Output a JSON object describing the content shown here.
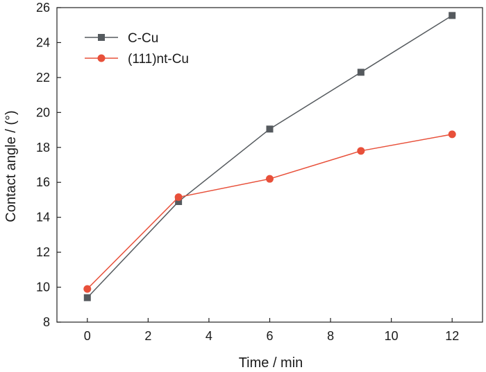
{
  "chart_data": {
    "type": "line",
    "xlabel": "Time / min",
    "ylabel": "Contact angle / (°)",
    "xlim": [
      -1,
      13
    ],
    "ylim": [
      8,
      26
    ],
    "x_ticks": [
      "0",
      "2",
      "4",
      "6",
      "8",
      "10",
      "12"
    ],
    "y_ticks": [
      "8",
      "10",
      "12",
      "14",
      "16",
      "18",
      "20",
      "22",
      "24",
      "26"
    ],
    "grid": false,
    "legend_position": "top-left",
    "series": [
      {
        "name": "C-Cu",
        "color": "#555a5e",
        "marker": "square",
        "x": [
          0,
          3,
          6,
          9,
          12
        ],
        "values": [
          9.4,
          14.9,
          19.05,
          22.3,
          25.55
        ]
      },
      {
        "name": "(111)nt-Cu",
        "color": "#e8503a",
        "marker": "circle",
        "x": [
          0,
          3,
          6,
          9,
          12
        ],
        "values": [
          9.9,
          15.15,
          16.2,
          17.8,
          18.75
        ]
      }
    ]
  }
}
